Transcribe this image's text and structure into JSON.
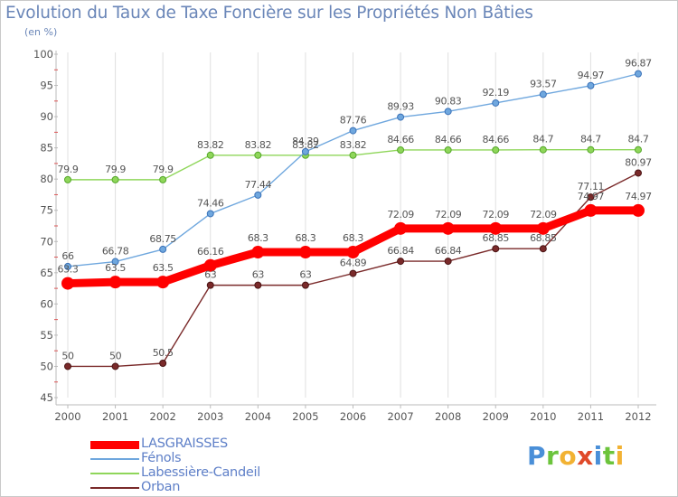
{
  "title": "Evolution du Taux de Taxe Foncière sur les Propriétés Non Bâties",
  "subtitle": "(en %)",
  "logo": {
    "text": "Proxiti",
    "colors": [
      "#4a8fd8",
      "#6cc43c",
      "#f2b233",
      "#e04a2a",
      "#4a8fd8",
      "#6cc43c",
      "#f2b233"
    ]
  },
  "chart_data": {
    "type": "line",
    "title": "Evolution du Taux de Taxe Foncière sur les Propriétés Non Bâties",
    "ylabel": "(en %)",
    "xlabel": "",
    "x": [
      "2000",
      "2001",
      "2002",
      "2003",
      "2004",
      "2005",
      "2006",
      "2007",
      "2008",
      "2009",
      "2010",
      "2011",
      "2012"
    ],
    "ylim": [
      45,
      100
    ],
    "yticks": [
      "45",
      "50",
      "55",
      "60",
      "65",
      "70",
      "75",
      "80",
      "85",
      "90",
      "95",
      "100"
    ],
    "grid": "vertical",
    "legend": "bottom-left",
    "series": [
      {
        "name": "LASGRAISSES",
        "color": "#ff0000",
        "values": [
          63.3,
          63.5,
          63.5,
          66.16,
          68.3,
          68.3,
          68.3,
          72.09,
          72.09,
          72.09,
          72.09,
          74.97,
          74.97
        ],
        "labels": [
          "63.3",
          "63.5",
          "63.5",
          "66.16",
          "68.3",
          "68.3",
          "68.3",
          "72.09",
          "72.09",
          "72.09",
          "72.09",
          "74.97",
          "74.97"
        ]
      },
      {
        "name": "Fénols",
        "color": "#6fa7de",
        "values": [
          66,
          66.78,
          68.75,
          74.46,
          77.44,
          84.39,
          87.76,
          89.93,
          90.83,
          92.19,
          93.57,
          94.97,
          96.87
        ],
        "labels": [
          "66",
          "66.78",
          "68.75",
          "74.46",
          "77.44",
          "84.39",
          "87.76",
          "89.93",
          "90.83",
          "92.19",
          "93.57",
          "94.97",
          "96.87"
        ]
      },
      {
        "name": "Labessière-Candeil",
        "color": "#8fd65a",
        "values": [
          79.9,
          79.9,
          79.9,
          83.82,
          83.82,
          83.82,
          83.82,
          84.66,
          84.66,
          84.66,
          84.7,
          84.7,
          84.7
        ],
        "labels": [
          "79.9",
          "79.9",
          "79.9",
          "83.82",
          "83.82",
          "83.82",
          "83.82",
          "84.66",
          "84.66",
          "84.66",
          "84.7",
          "84.7",
          "84.7"
        ]
      },
      {
        "name": "Orban",
        "color": "#7a2a2a",
        "values": [
          50,
          50,
          50.5,
          63,
          63,
          63,
          64.89,
          66.84,
          66.84,
          68.85,
          68.85,
          77.11,
          80.97
        ],
        "labels": [
          "50",
          "50",
          "50.5",
          "63",
          "63",
          "63",
          "64.89",
          "66.84",
          "66.84",
          "68.85",
          "68.85",
          "77.11",
          "80.97"
        ]
      }
    ]
  }
}
